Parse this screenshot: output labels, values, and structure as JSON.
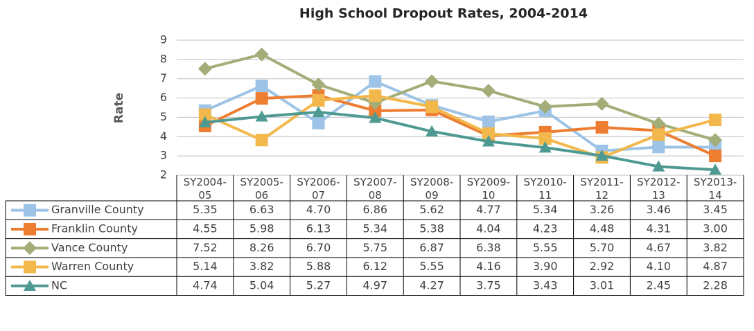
{
  "chart_data": {
    "type": "line",
    "title": "High School Dropout Rates, 2004-2014",
    "y_label": "Rate",
    "categories": [
      "SY2004-05",
      "SY2005-06",
      "SY2006-07",
      "SY2007-08",
      "SY2008-09",
      "SY2009-10",
      "SY2010-11",
      "SY2011-12",
      "SY2012-13",
      "SY2013-14"
    ],
    "ylim": [
      2,
      9
    ],
    "yticks": [
      2,
      3,
      4,
      5,
      6,
      7,
      8,
      9
    ],
    "grid": true,
    "series": [
      {
        "name": "Granville County",
        "color": "#9dc3e6",
        "marker": "square",
        "values": [
          5.35,
          6.63,
          4.7,
          6.86,
          5.62,
          4.77,
          5.34,
          3.26,
          3.46,
          3.45
        ],
        "value_labels": [
          "5.35",
          "6.63",
          "4.70",
          "6.86",
          "5.62",
          "4.77",
          "5.34",
          "3.26",
          "3.46",
          "3.45"
        ]
      },
      {
        "name": "Franklin County",
        "color": "#ed7d31",
        "marker": "square",
        "values": [
          4.55,
          5.98,
          6.13,
          5.34,
          5.38,
          4.04,
          4.23,
          4.48,
          4.31,
          3.0
        ],
        "value_labels": [
          "4.55",
          "5.98",
          "6.13",
          "5.34",
          "5.38",
          "4.04",
          "4.23",
          "4.48",
          "4.31",
          "3.00"
        ]
      },
      {
        "name": "Vance County",
        "color": "#a3ad78",
        "marker": "diamond",
        "values": [
          7.52,
          8.26,
          6.7,
          5.75,
          6.87,
          6.38,
          5.55,
          5.7,
          4.67,
          3.82
        ],
        "value_labels": [
          "7.52",
          "8.26",
          "6.70",
          "5.75",
          "6.87",
          "6.38",
          "5.55",
          "5.70",
          "4.67",
          "3.82"
        ]
      },
      {
        "name": "Warren County",
        "color": "#f2b84b",
        "marker": "square",
        "values": [
          5.14,
          3.82,
          5.88,
          6.12,
          5.55,
          4.16,
          3.9,
          2.92,
          4.1,
          4.87
        ],
        "value_labels": [
          "5.14",
          "3.82",
          "5.88",
          "6.12",
          "5.55",
          "4.16",
          "3.90",
          "2.92",
          "4.10",
          "4.87"
        ]
      },
      {
        "name": "NC",
        "color": "#4e9a92",
        "marker": "triangle",
        "values": [
          4.74,
          5.04,
          5.27,
          4.97,
          4.27,
          3.75,
          3.43,
          3.01,
          2.45,
          2.28
        ],
        "value_labels": [
          "4.74",
          "5.04",
          "5.27",
          "4.97",
          "4.27",
          "3.75",
          "3.43",
          "3.01",
          "2.45",
          "2.28"
        ]
      }
    ]
  }
}
